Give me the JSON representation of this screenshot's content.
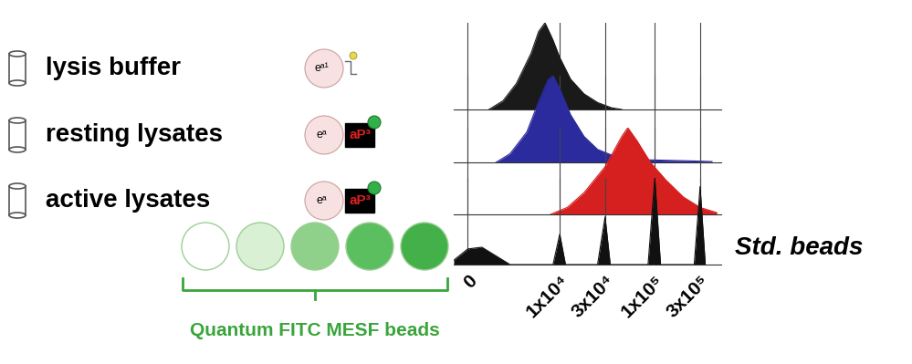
{
  "chart_data": {
    "type": "area",
    "log": "x",
    "grid": true,
    "tick_labels": "x",
    "xlim": [
      -1000,
      500000
    ],
    "xticks": [
      0,
      {
        "value": 10000,
        "label": "1x10⁴"
      },
      {
        "value": 30000,
        "label": "3x10⁴"
      },
      {
        "value": 100000,
        "label": "1x10⁵"
      },
      {
        "value": 300000,
        "label": "3x10⁵"
      }
    ],
    "ylim": [
      0,
      100
    ],
    "series": [
      {
        "name": "lysis buffer",
        "color": "#1a1a1a",
        "icon_labels": [
          "eᵃ¹"
        ],
        "x": [
          1500,
          2500,
          3500,
          5000,
          6000,
          7000,
          8500,
          10000,
          13000,
          18000,
          25000,
          35000,
          45000
        ],
        "values": [
          0,
          10,
          30,
          65,
          90,
          100,
          80,
          60,
          35,
          18,
          8,
          2,
          0
        ]
      },
      {
        "name": "resting lysates",
        "color": "#2b2b9e",
        "icon_labels": [
          "eᵃ",
          "aP³"
        ],
        "x": [
          2000,
          3000,
          4500,
          6000,
          7500,
          8500,
          10000,
          13000,
          18000,
          25000,
          40000,
          80000,
          200000,
          400000
        ],
        "values": [
          0,
          10,
          35,
          70,
          95,
          100,
          85,
          55,
          30,
          15,
          6,
          3,
          2,
          1
        ]
      },
      {
        "name": "active lysates",
        "color": "#d62020",
        "icon_labels": [
          "eᵃ",
          "aP³"
        ],
        "x": [
          8000,
          12000,
          18000,
          30000,
          45000,
          52000,
          65000,
          90000,
          130000,
          200000,
          300000,
          450000
        ],
        "values": [
          0,
          8,
          25,
          55,
          90,
          100,
          85,
          60,
          40,
          20,
          8,
          2
        ]
      },
      {
        "name": "Std. beads",
        "color": "#111111",
        "x": [
          -1000,
          0,
          1000,
          2000,
          3000,
          8500,
          10000,
          11500,
          25000,
          30000,
          34000,
          85000,
          100000,
          115000,
          260000,
          300000,
          340000
        ],
        "values": [
          5,
          18,
          20,
          10,
          0,
          0,
          35,
          0,
          0,
          55,
          0,
          0,
          100,
          0,
          0,
          90,
          0
        ]
      }
    ],
    "bead_legend": {
      "label": "Quantum FITC MESF beads",
      "colors": [
        "#ffffff",
        "#d9f0d5",
        "#8fd18a",
        "#5bbf5f",
        "#43b04a"
      ],
      "label_color": "#3aa53a"
    }
  }
}
